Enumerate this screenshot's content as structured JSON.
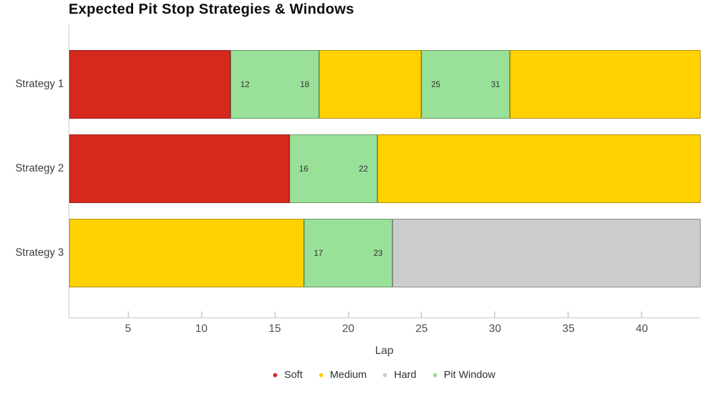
{
  "title": "Expected Pit Stop Strategies & Windows",
  "chart_data": {
    "type": "bar",
    "orientation": "horizontal",
    "title": "Expected Pit Stop Strategies & Windows",
    "xlabel": "Lap",
    "x_range": [
      1,
      44
    ],
    "x_ticks": [
      5,
      10,
      15,
      20,
      25,
      30,
      35,
      40
    ],
    "categories": [
      "Strategy 1",
      "Strategy 2",
      "Strategy 3"
    ],
    "grid": false,
    "legend_position": "bottom-center",
    "series_colors": {
      "Soft": "#d6291e",
      "Medium": "#ffd100",
      "Hard": "#cccccc",
      "Pit Window": "#99e098"
    },
    "legend": [
      {
        "label": "Soft",
        "color": "#d6291e"
      },
      {
        "label": "Medium",
        "color": "#ffd100"
      },
      {
        "label": "Hard",
        "color": "#cccccc"
      },
      {
        "label": "Pit Window",
        "color": "#99e098"
      }
    ],
    "rows": [
      {
        "category": "Strategy 1",
        "segments": [
          {
            "type": "Soft",
            "start": 1,
            "end": 12
          },
          {
            "type": "Pit Window",
            "start": 12,
            "end": 18,
            "start_label": "12",
            "end_label": "18"
          },
          {
            "type": "Medium",
            "start": 18,
            "end": 25
          },
          {
            "type": "Pit Window",
            "start": 25,
            "end": 31,
            "start_label": "25",
            "end_label": "31"
          },
          {
            "type": "Medium",
            "start": 31,
            "end": 44
          }
        ]
      },
      {
        "category": "Strategy 2",
        "segments": [
          {
            "type": "Soft",
            "start": 1,
            "end": 16
          },
          {
            "type": "Pit Window",
            "start": 16,
            "end": 22,
            "start_label": "16",
            "end_label": "22"
          },
          {
            "type": "Medium",
            "start": 22,
            "end": 44
          }
        ]
      },
      {
        "category": "Strategy 3",
        "segments": [
          {
            "type": "Medium",
            "start": 1,
            "end": 17
          },
          {
            "type": "Pit Window",
            "start": 17,
            "end": 23,
            "start_label": "17",
            "end_label": "23"
          },
          {
            "type": "Hard",
            "start": 23,
            "end": 44
          }
        ]
      }
    ]
  }
}
